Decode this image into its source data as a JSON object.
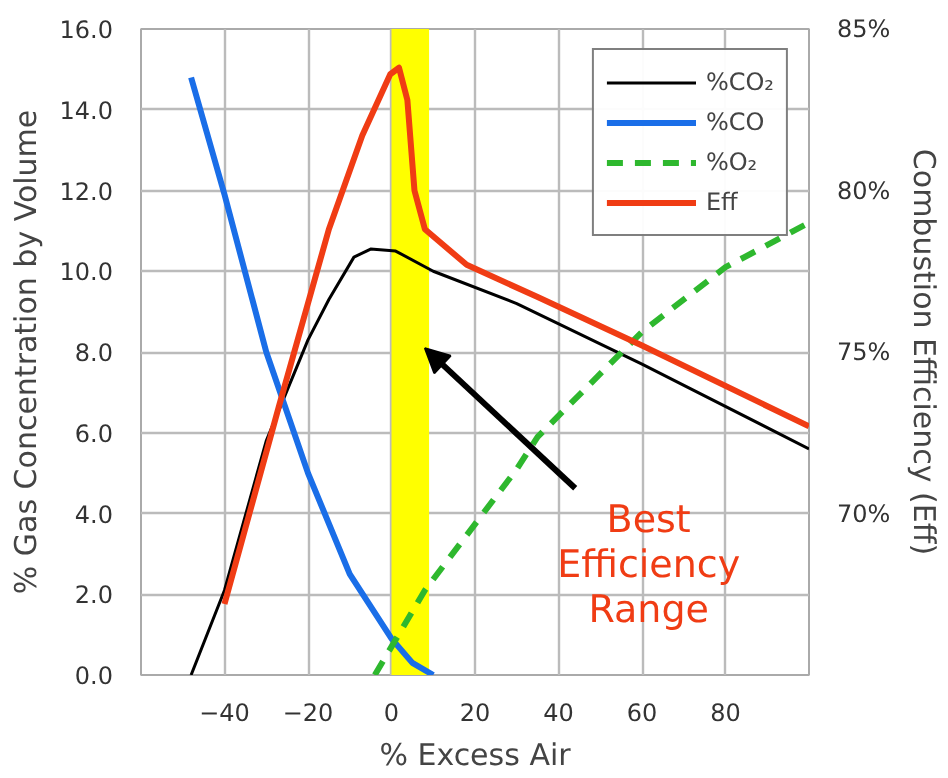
{
  "chart_data": {
    "type": "line",
    "xlabel": "% Excess Air",
    "ylabel": "% Gas Concentration by Volume",
    "y2label": "Combustion Efficiency (Eff)",
    "xlim": [
      -60,
      100
    ],
    "xticks": [
      -40,
      -20,
      0,
      20,
      40,
      60,
      80
    ],
    "ylim": [
      0,
      16
    ],
    "yticks": [
      {
        "value": 0,
        "label": "0.0"
      },
      {
        "value": 2,
        "label": "2.0"
      },
      {
        "value": 4,
        "label": "4.0"
      },
      {
        "value": 6,
        "label": "6.0"
      },
      {
        "value": 8,
        "label": "8.0"
      },
      {
        "value": 10,
        "label": "10.0"
      },
      {
        "value": 12,
        "label": "12.0"
      },
      {
        "value": 14,
        "label": "14.0"
      },
      {
        "value": 16,
        "label": "16.0"
      }
    ],
    "y2lim": [
      65,
      85
    ],
    "y2ticks": [
      {
        "value": 70,
        "label": "70%"
      },
      {
        "value": 75,
        "label": "75%"
      },
      {
        "value": 80,
        "label": "80%"
      },
      {
        "value": 85,
        "label": "85%"
      }
    ],
    "grid": true,
    "legend": "top right",
    "marker": "none",
    "bands": [
      {
        "axis": "x",
        "from": 0,
        "to": 9,
        "label": "Best Efficiency Range",
        "color": "#ffff00"
      }
    ],
    "series": [
      {
        "name": "%CO₂",
        "color": "#000000",
        "x": [
          -48,
          -40,
          -30,
          -20,
          -15,
          -9,
          -5,
          1,
          10,
          30,
          60,
          100
        ],
        "values": [
          0,
          2.1,
          5.8,
          8.3,
          9.3,
          10.35,
          10.55,
          10.5,
          10.0,
          9.2,
          7.7,
          5.6
        ]
      },
      {
        "name": "%CO",
        "color": "#1a6ee8",
        "x": [
          -48,
          -40,
          -30,
          -20,
          -10,
          0,
          5,
          10
        ],
        "values": [
          14.8,
          11.9,
          8.0,
          5.0,
          2.5,
          0.9,
          0.3,
          0
        ]
      },
      {
        "name": "%O₂",
        "color": "#2eb82e",
        "line_style": "dashed",
        "x": [
          -4,
          8,
          30,
          35,
          60,
          80,
          100
        ],
        "values": [
          0,
          2.1,
          5.1,
          5.9,
          8.5,
          10.1,
          11.2
        ]
      },
      {
        "name": "Eff",
        "color": "#f03c14",
        "axis": "y2",
        "x": [
          -40,
          -27,
          -15,
          -7,
          -0.3,
          1.8,
          3.8,
          5.5,
          8,
          18,
          35,
          60,
          100
        ],
        "values": [
          67.2,
          73.3,
          78.8,
          81.7,
          83.6,
          83.8,
          82.8,
          80.0,
          78.8,
          77.7,
          76.7,
          75.2,
          72.7
        ]
      }
    ]
  }
}
